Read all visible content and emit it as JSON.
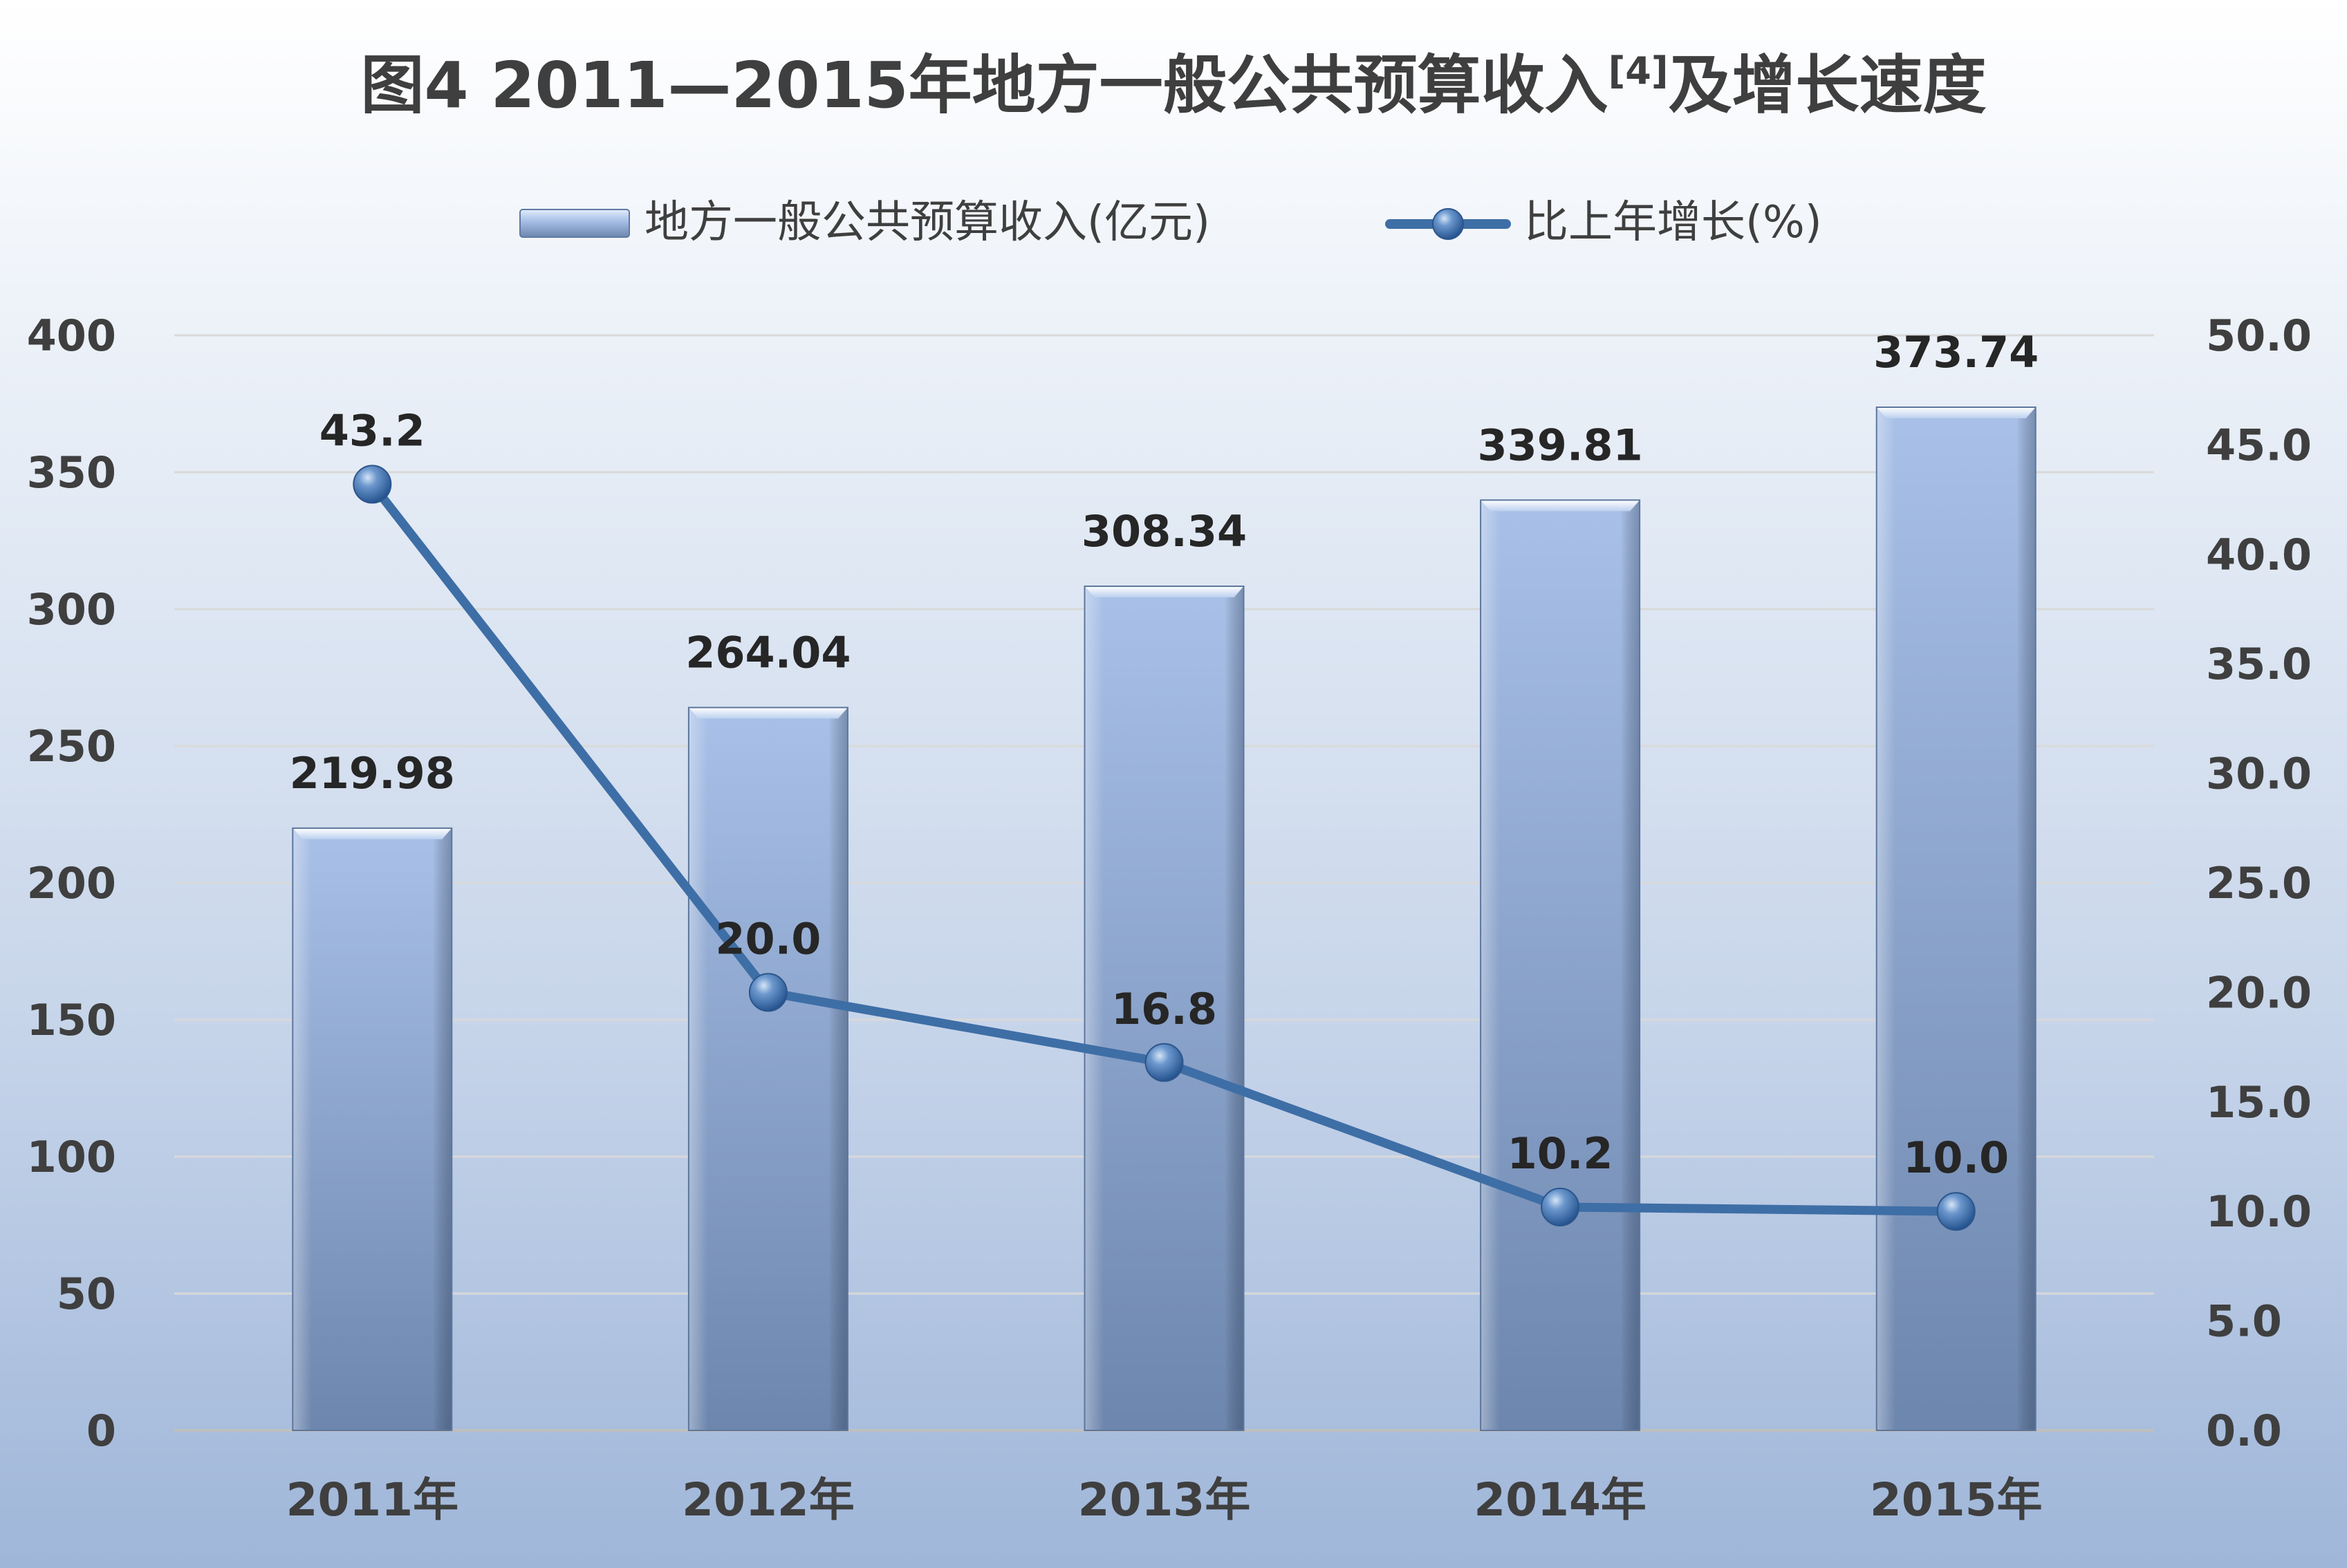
{
  "chart_data": {
    "type": "bar",
    "title": {
      "prefix": "图4  2011—2015年地方一般公共预算收入",
      "superscript": "[4]",
      "suffix": "及增长速度"
    },
    "categories": [
      "2011年",
      "2012年",
      "2013年",
      "2014年",
      "2015年"
    ],
    "series": [
      {
        "name": "地方一般公共预算收入(亿元)",
        "type": "bar",
        "axis": "left",
        "values": [
          219.98,
          264.04,
          308.34,
          339.81,
          373.74
        ],
        "labels": [
          "219.98",
          "264.04",
          "308.34",
          "339.81",
          "373.74"
        ]
      },
      {
        "name": "比上年增长(%)",
        "type": "line",
        "axis": "right",
        "values": [
          43.2,
          20.0,
          16.8,
          10.2,
          10.0
        ],
        "labels": [
          "43.2",
          "20.0",
          "16.8",
          "10.2",
          "10.0"
        ]
      }
    ],
    "y_left": {
      "ylim": [
        0,
        400
      ],
      "ticks": [
        "0",
        "50",
        "100",
        "150",
        "200",
        "250",
        "300",
        "350",
        "400"
      ]
    },
    "y_right": {
      "ylim": [
        0,
        50
      ],
      "ticks": [
        "0.0",
        "5.0",
        "10.0",
        "15.0",
        "20.0",
        "25.0",
        "30.0",
        "35.0",
        "40.0",
        "45.0",
        "50.0"
      ]
    },
    "grid": true,
    "legend_position": "top-center",
    "colors": {
      "bar_top": "#a9c1e8",
      "bar_bottom": "#6d86ad",
      "line": "#3e6ea6",
      "marker": "#3a6ca8",
      "grid": "#d9d9d9",
      "text": "#3f3f3f"
    }
  }
}
